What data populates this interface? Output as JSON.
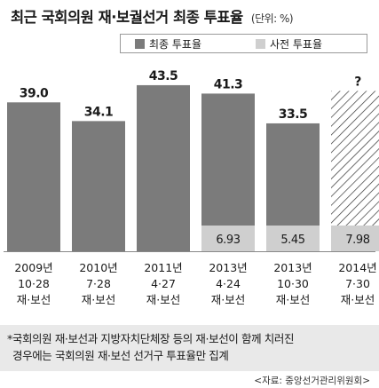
{
  "title": {
    "main": "최근 국회의원 재·보궐선거 최종 투표율",
    "unit": "(단위: %)"
  },
  "chart_data": {
    "type": "bar",
    "categories": [
      [
        "2009년",
        "10·28",
        "재·보선"
      ],
      [
        "2010년",
        "7·28",
        "재·보선"
      ],
      [
        "2011년",
        "4·27",
        "재·보선"
      ],
      [
        "2013년",
        "4·24",
        "재·보선"
      ],
      [
        "2013년",
        "10·30",
        "재·보선"
      ],
      [
        "2014년",
        "7·30",
        "재·보선"
      ]
    ],
    "series": [
      {
        "name": "최종 투표율",
        "values": [
          39.0,
          34.1,
          43.5,
          41.3,
          33.5,
          null
        ],
        "labels": [
          "39.0",
          "34.1",
          "43.5",
          "41.3",
          "33.5",
          "?"
        ]
      },
      {
        "name": "사전 투표율",
        "values": [
          null,
          null,
          null,
          6.93,
          5.45,
          7.98
        ],
        "labels": [
          "",
          "",
          "",
          "6.93",
          "5.45",
          "7.98"
        ]
      }
    ],
    "unknown_final": [
      false,
      false,
      false,
      false,
      false,
      true
    ],
    "colors": {
      "final": "#7b7b7b",
      "early": "#cfcfcf",
      "hatch": "#333333"
    },
    "ylim": [
      0,
      46
    ],
    "legend_position": "top-right",
    "grid": false
  },
  "note": {
    "line1": "*국회의원 재·보선과 지방자치단체장 등의 재·보선이 함께 치러진",
    "line2": "경우에는 국회의원 재·보선 선거구 투표율만 집계"
  },
  "source": "<자료: 중앙선거관리위원회>"
}
